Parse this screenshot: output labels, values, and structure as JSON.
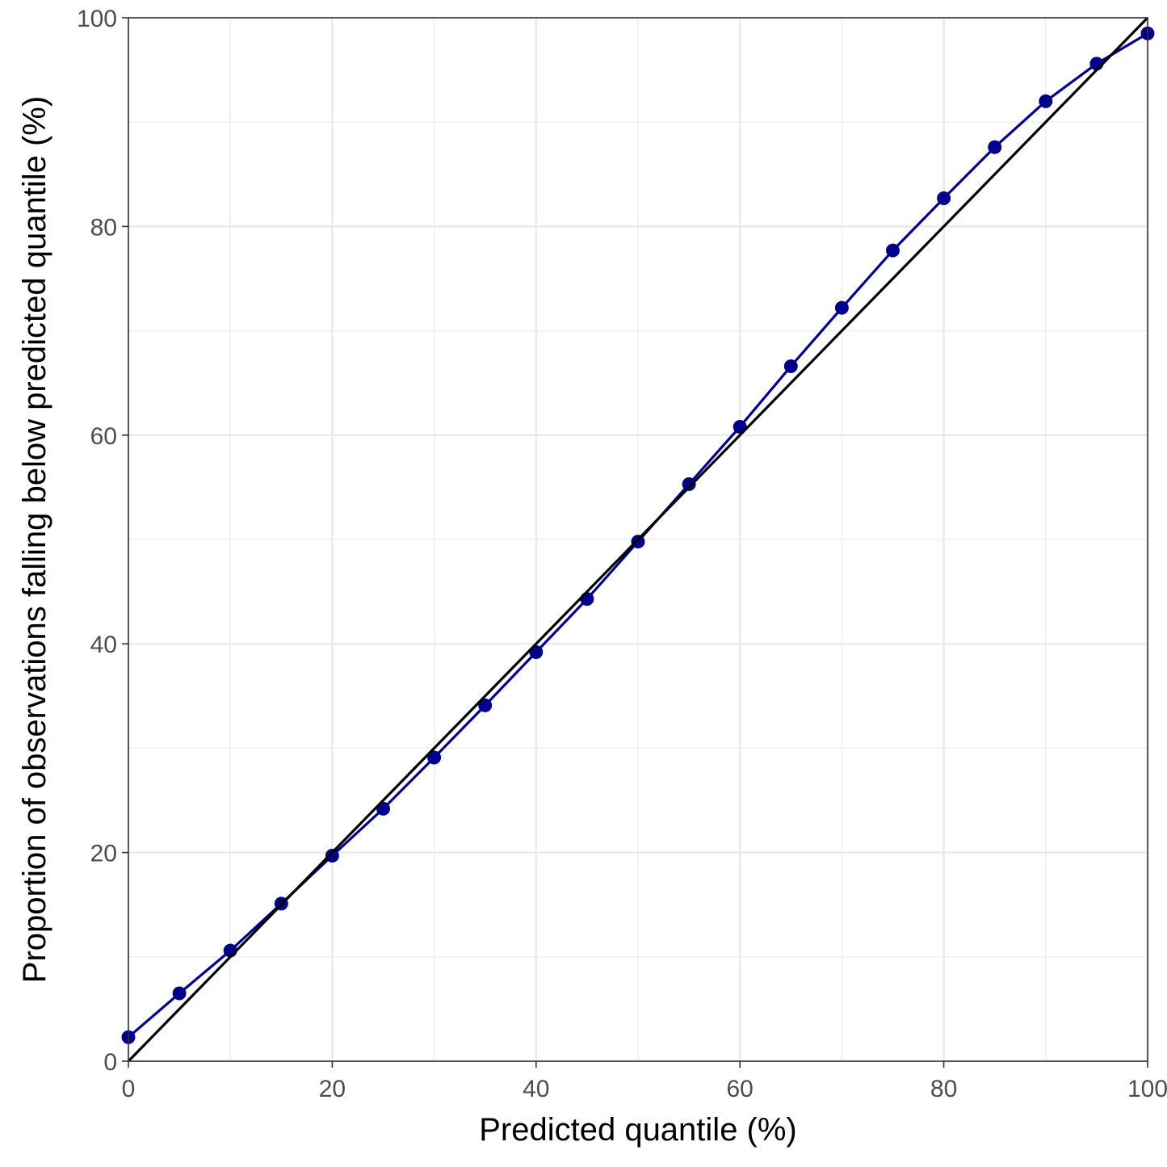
{
  "chart_data": {
    "type": "line",
    "title": "",
    "xlabel": "Predicted quantile (%)",
    "ylabel": "Proportion of observations falling below predicted quantile (%)",
    "xlim": [
      0,
      100
    ],
    "ylim": [
      0,
      100
    ],
    "x_ticks": [
      0,
      20,
      40,
      60,
      80,
      100
    ],
    "y_ticks": [
      0,
      20,
      40,
      60,
      80,
      100
    ],
    "x_minor_ticks": [
      10,
      30,
      50,
      70,
      90
    ],
    "y_minor_ticks": [
      10,
      30,
      50,
      70,
      90
    ],
    "grid": true,
    "series": [
      {
        "kind": "line+points",
        "color": "#00008b",
        "x": [
          0,
          5,
          10,
          15,
          20,
          25,
          30,
          35,
          40,
          45,
          50,
          55,
          60,
          65,
          70,
          75,
          80,
          85,
          90,
          95,
          100
        ],
        "y": [
          2.3,
          6.5,
          10.6,
          15.1,
          19.7,
          24.2,
          29.1,
          34.1,
          39.2,
          44.3,
          49.8,
          55.3,
          60.8,
          66.6,
          72.2,
          77.7,
          82.7,
          87.6,
          92.0,
          95.6,
          98.5
        ]
      },
      {
        "kind": "reference-line",
        "color": "#000000",
        "x": [
          0,
          100
        ],
        "y": [
          0,
          100
        ]
      }
    ]
  }
}
